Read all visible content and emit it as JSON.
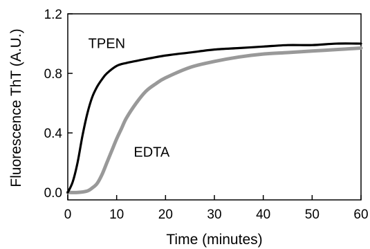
{
  "chart_data": {
    "type": "line",
    "title": "",
    "xlabel": "Time (minutes)",
    "ylabel": "Fluorescence ThT (A.U.)",
    "xlim": [
      0,
      60
    ],
    "ylim": [
      -0.05,
      1.2
    ],
    "x_ticks": [
      0,
      10,
      20,
      30,
      40,
      50,
      60
    ],
    "x_tick_labels": [
      "0",
      "10",
      "20",
      "30",
      "40",
      "50",
      "60"
    ],
    "y_ticks": [
      0.0,
      0.4,
      0.8,
      1.2
    ],
    "y_tick_labels": [
      "0.0",
      "0.4",
      "0.8",
      "1.2"
    ],
    "grid": false,
    "legend": "none",
    "series": [
      {
        "name": "TPEN",
        "color": "#000000",
        "x": [
          0,
          1,
          2,
          3,
          4,
          5,
          6,
          7,
          8,
          10,
          12,
          15,
          20,
          25,
          30,
          35,
          40,
          45,
          50,
          55,
          60
        ],
        "values": [
          0.0,
          0.07,
          0.2,
          0.38,
          0.53,
          0.64,
          0.71,
          0.76,
          0.8,
          0.85,
          0.87,
          0.89,
          0.92,
          0.94,
          0.96,
          0.97,
          0.98,
          0.99,
          0.99,
          1.0,
          1.0
        ]
      },
      {
        "name": "EDTA",
        "color": "#999999",
        "x": [
          0,
          2,
          4,
          5,
          6,
          7,
          8,
          9,
          10,
          11,
          12,
          14,
          16,
          18,
          20,
          25,
          30,
          35,
          40,
          45,
          50,
          55,
          60
        ],
        "values": [
          0.0,
          0.0,
          0.01,
          0.03,
          0.06,
          0.12,
          0.2,
          0.28,
          0.36,
          0.43,
          0.5,
          0.6,
          0.68,
          0.73,
          0.77,
          0.84,
          0.88,
          0.91,
          0.93,
          0.94,
          0.95,
          0.96,
          0.97
        ]
      }
    ],
    "annotations": [
      {
        "text": "TPEN",
        "x": 4.2,
        "y": 0.97
      },
      {
        "text": "EDTA",
        "x": 13.5,
        "y": 0.24
      }
    ]
  }
}
